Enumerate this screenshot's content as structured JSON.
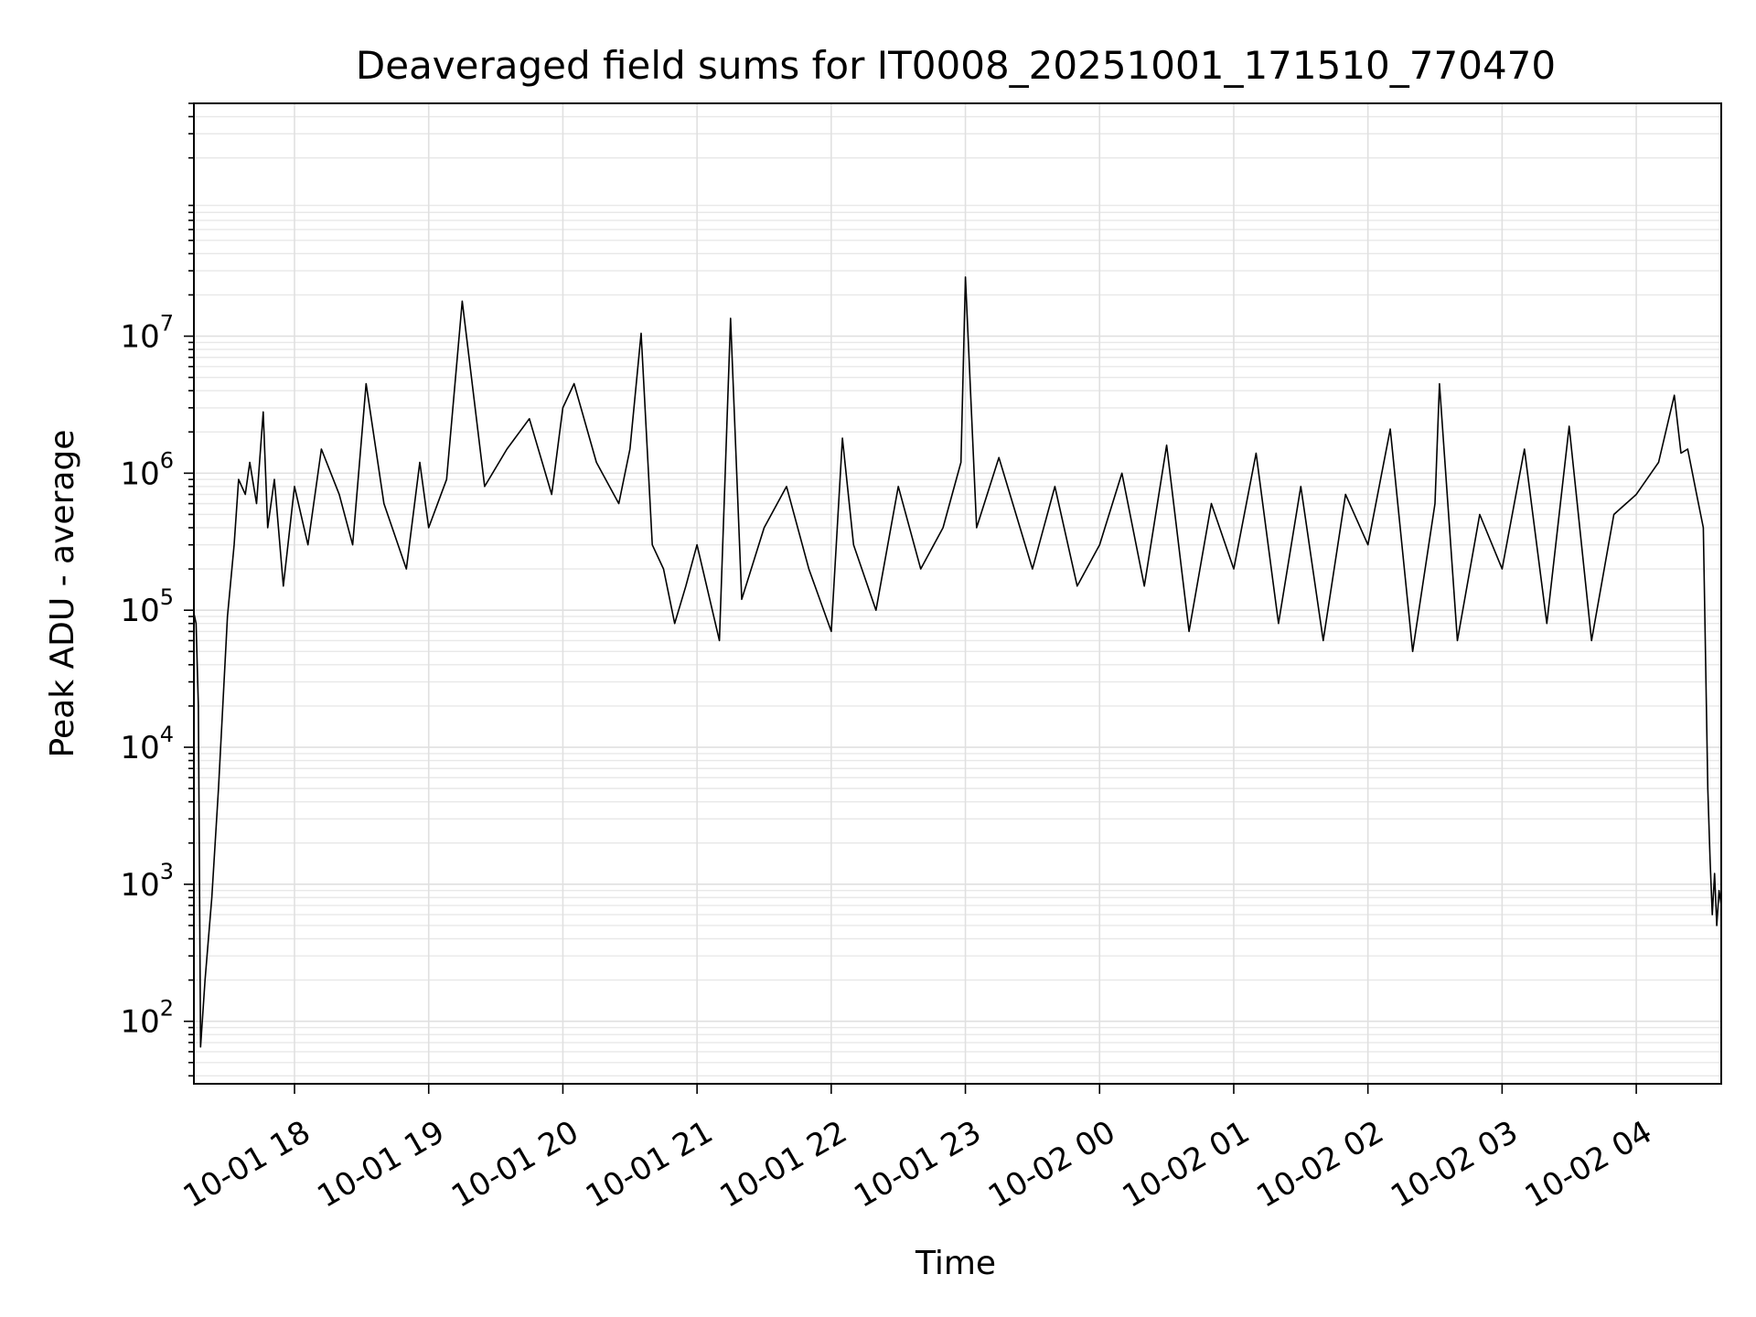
{
  "chart_data": {
    "type": "line",
    "title": "Deaveraged field sums for IT0008_20251001_171510_770470",
    "xlabel": "Time",
    "ylabel": "Peak ADU - average",
    "y_scale": "log",
    "ylim": [
      35,
      500000000
    ],
    "xlim": [
      "2025-10-01 17:15",
      "2025-10-02 04:38"
    ],
    "grid": "on (major and minor)",
    "line_color": "#000000",
    "x_ticks": [
      {
        "time": "2025-10-01 18:00",
        "label": "10-01 18"
      },
      {
        "time": "2025-10-01 19:00",
        "label": "10-01 19"
      },
      {
        "time": "2025-10-01 20:00",
        "label": "10-01 20"
      },
      {
        "time": "2025-10-01 21:00",
        "label": "10-01 21"
      },
      {
        "time": "2025-10-01 22:00",
        "label": "10-01 22"
      },
      {
        "time": "2025-10-01 23:00",
        "label": "10-01 23"
      },
      {
        "time": "2025-10-02 00:00",
        "label": "10-02 00"
      },
      {
        "time": "2025-10-02 01:00",
        "label": "10-02 01"
      },
      {
        "time": "2025-10-02 02:00",
        "label": "10-02 02"
      },
      {
        "time": "2025-10-02 03:00",
        "label": "10-02 03"
      },
      {
        "time": "2025-10-02 04:00",
        "label": "10-02 04"
      }
    ],
    "y_ticks": [
      {
        "value": 100,
        "base": "10",
        "exp": "2"
      },
      {
        "value": 1000,
        "base": "10",
        "exp": "3"
      },
      {
        "value": 10000,
        "base": "10",
        "exp": "4"
      },
      {
        "value": 100000,
        "base": "10",
        "exp": "5"
      },
      {
        "value": 1000000,
        "base": "10",
        "exp": "6"
      },
      {
        "value": 10000000,
        "base": "10",
        "exp": "7"
      }
    ],
    "series": [
      {
        "x": [
          "2025-10-01 17:15",
          "2025-10-01 17:16",
          "2025-10-01 17:17",
          "2025-10-01 17:18",
          "2025-10-01 17:20",
          "2025-10-01 17:23",
          "2025-10-01 17:26",
          "2025-10-01 17:30",
          "2025-10-01 17:33",
          "2025-10-01 17:35",
          "2025-10-01 17:38",
          "2025-10-01 17:40",
          "2025-10-01 17:43",
          "2025-10-01 17:46",
          "2025-10-01 17:48",
          "2025-10-01 17:51",
          "2025-10-01 17:55",
          "2025-10-01 18:00",
          "2025-10-01 18:06",
          "2025-10-01 18:12",
          "2025-10-01 18:20",
          "2025-10-01 18:26",
          "2025-10-01 18:32",
          "2025-10-01 18:40",
          "2025-10-01 18:50",
          "2025-10-01 18:56",
          "2025-10-01 19:00",
          "2025-10-01 19:08",
          "2025-10-01 19:15",
          "2025-10-01 19:25",
          "2025-10-01 19:35",
          "2025-10-01 19:45",
          "2025-10-01 19:55",
          "2025-10-01 20:00",
          "2025-10-01 20:05",
          "2025-10-01 20:15",
          "2025-10-01 20:25",
          "2025-10-01 20:30",
          "2025-10-01 20:35",
          "2025-10-01 20:40",
          "2025-10-01 20:45",
          "2025-10-01 20:50",
          "2025-10-01 20:55",
          "2025-10-01 21:00",
          "2025-10-01 21:10",
          "2025-10-01 21:15",
          "2025-10-01 21:20",
          "2025-10-01 21:30",
          "2025-10-01 21:40",
          "2025-10-01 21:50",
          "2025-10-01 22:00",
          "2025-10-01 22:05",
          "2025-10-01 22:10",
          "2025-10-01 22:20",
          "2025-10-01 22:30",
          "2025-10-01 22:40",
          "2025-10-01 22:50",
          "2025-10-01 22:58",
          "2025-10-01 23:00",
          "2025-10-01 23:05",
          "2025-10-01 23:15",
          "2025-10-01 23:30",
          "2025-10-01 23:40",
          "2025-10-01 23:50",
          "2025-10-02 00:00",
          "2025-10-02 00:10",
          "2025-10-02 00:20",
          "2025-10-02 00:30",
          "2025-10-02 00:40",
          "2025-10-02 00:50",
          "2025-10-02 01:00",
          "2025-10-02 01:10",
          "2025-10-02 01:20",
          "2025-10-02 01:30",
          "2025-10-02 01:40",
          "2025-10-02 01:50",
          "2025-10-02 02:00",
          "2025-10-02 02:10",
          "2025-10-02 02:20",
          "2025-10-02 02:30",
          "2025-10-02 02:32",
          "2025-10-02 02:40",
          "2025-10-02 02:50",
          "2025-10-02 03:00",
          "2025-10-02 03:10",
          "2025-10-02 03:20",
          "2025-10-02 03:30",
          "2025-10-02 03:40",
          "2025-10-02 03:50",
          "2025-10-02 04:00",
          "2025-10-02 04:10",
          "2025-10-02 04:17",
          "2025-10-02 04:20",
          "2025-10-02 04:23",
          "2025-10-02 04:27",
          "2025-10-02 04:30",
          "2025-10-02 04:32",
          "2025-10-02 04:33",
          "2025-10-02 04:34",
          "2025-10-02 04:35",
          "2025-10-02 04:36",
          "2025-10-02 04:37",
          "2025-10-02 04:38"
        ],
        "y": [
          95000,
          80000,
          20000,
          65,
          200,
          800,
          5000,
          90000,
          300000,
          900000,
          700000,
          1200000,
          600000,
          2800000,
          400000,
          900000,
          150000,
          800000,
          300000,
          1500000,
          700000,
          300000,
          4500000,
          600000,
          200000,
          1200000,
          400000,
          900000,
          18000000,
          800000,
          1500000,
          2500000,
          700000,
          3000000,
          4500000,
          1200000,
          600000,
          1500000,
          10500000,
          300000,
          200000,
          80000,
          150000,
          300000,
          60000,
          13500000,
          120000,
          400000,
          800000,
          200000,
          70000,
          1800000,
          300000,
          100000,
          800000,
          200000,
          400000,
          1200000,
          27000000,
          400000,
          1300000,
          200000,
          800000,
          150000,
          300000,
          1000000,
          150000,
          1600000,
          70000,
          600000,
          200000,
          1400000,
          80000,
          800000,
          60000,
          700000,
          300000,
          2100000,
          50000,
          600000,
          4500000,
          60000,
          500000,
          200000,
          1500000,
          80000,
          2200000,
          60000,
          500000,
          700000,
          1200000,
          3700000,
          1400000,
          1500000,
          700000,
          400000,
          5000,
          1500,
          600,
          1200,
          500,
          900,
          700
        ]
      }
    ]
  }
}
